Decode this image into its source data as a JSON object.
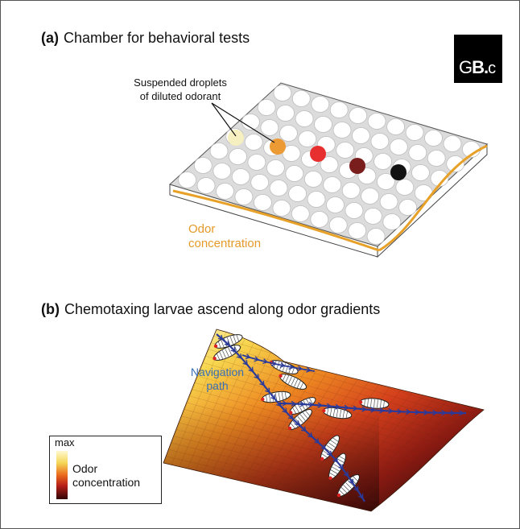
{
  "panel_a": {
    "letter": "(a)",
    "title": "Chamber for behavioral tests"
  },
  "panel_b": {
    "letter": "(b)",
    "title": "Chemotaxing larvae ascend along odor gradients"
  },
  "logo": {
    "text_a": "G",
    "text_b": "B.",
    "text_c": "c"
  },
  "annotations": {
    "droplets_line1": "Suspended droplets",
    "droplets_line2": "of diluted odorant",
    "odor_line1": "Odor",
    "odor_line2": "concentration",
    "nav_line1": "Navigation",
    "nav_line2": "path"
  },
  "legend": {
    "max_label": "max",
    "label_line1": "Odor",
    "label_line2": "concentration"
  },
  "colors": {
    "odor_curve": "#e8a128",
    "navigation_path": "#2a3a9a",
    "droplets": [
      "#f6efc0",
      "#eb9a34",
      "#e82f2f",
      "#7a1d1d",
      "#111111"
    ]
  }
}
